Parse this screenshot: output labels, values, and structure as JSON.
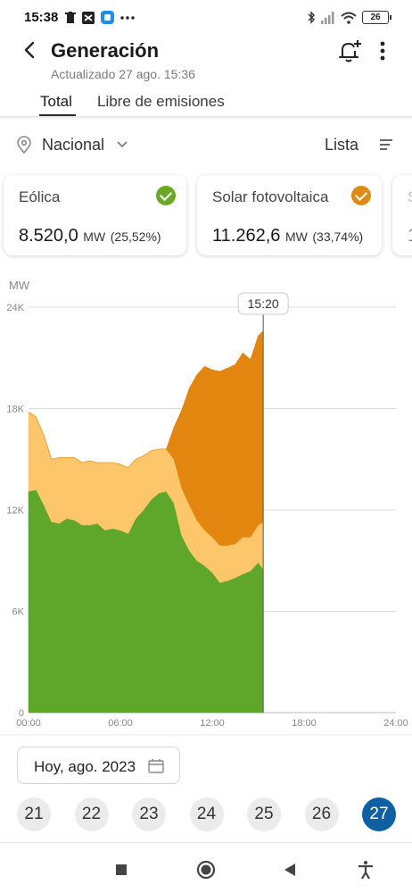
{
  "status_bar": {
    "time": "15:38",
    "left_icons": [
      "trash-icon",
      "transfer-icon",
      "app-icon",
      "more-dots-icon"
    ],
    "right_icons": [
      "bluetooth-icon",
      "signal-icon",
      "wifi-icon"
    ],
    "battery": "26"
  },
  "header": {
    "title": "Generación",
    "subtitle": "Actualizado 27 ago. 15:36",
    "tabs": [
      {
        "label": "Total",
        "active": true
      },
      {
        "label": "Libre de emisiones",
        "active": false
      }
    ]
  },
  "filters": {
    "location": "Nacional",
    "view": "Lista"
  },
  "cards": [
    {
      "name": "Eólica",
      "value": "8.520,0",
      "unit": "MW",
      "percent": "(25,52%)",
      "color": "#6aaa23"
    },
    {
      "name": "Solar fotovoltaica",
      "value": "11.262,6",
      "unit": "MW",
      "percent": "(33,74%)",
      "color": "#e08a16"
    },
    {
      "name": "S",
      "value": "1",
      "unit": "",
      "percent": "",
      "color": "#cccccc"
    }
  ],
  "chart_data": {
    "type": "area",
    "stacked": true,
    "ylabel": "MW",
    "ylim": [
      0,
      24000
    ],
    "y_ticks": [
      "0",
      "6K",
      "12K",
      "18K",
      "24K"
    ],
    "x_ticks": [
      "00:00",
      "06:00",
      "12:00",
      "18:00",
      "24:00"
    ],
    "cursor_label": "15:20",
    "grid": "horizontal",
    "x_hours": [
      0,
      0.5,
      1,
      1.5,
      2,
      2.5,
      3,
      3.5,
      4,
      4.5,
      5,
      5.5,
      6,
      6.5,
      7,
      7.5,
      8,
      8.5,
      9,
      9.5,
      10,
      10.5,
      11,
      11.5,
      12,
      12.5,
      13,
      13.5,
      14,
      14.5,
      15,
      15.33
    ],
    "series": [
      {
        "color": "#5fa72a",
        "values": [
          13100,
          13200,
          12300,
          11300,
          11200,
          11500,
          11400,
          11100,
          11100,
          11200,
          10800,
          10900,
          10800,
          10600,
          11500,
          12000,
          12600,
          13000,
          13100,
          12400,
          10500,
          9600,
          9000,
          8700,
          8300,
          7700,
          7800,
          8000,
          8200,
          8400,
          8900,
          8500
        ]
      },
      {
        "color": "#fdc66a",
        "values": [
          4700,
          4300,
          4100,
          3700,
          3900,
          3600,
          3700,
          3700,
          3800,
          3600,
          4000,
          3900,
          3900,
          3900,
          3500,
          3200,
          2900,
          2600,
          2500,
          2600,
          2800,
          2700,
          2400,
          2100,
          2100,
          2200,
          2100,
          2000,
          2200,
          2000,
          2200,
          2800
        ]
      },
      {
        "color": "#e2860f",
        "values": [
          0,
          0,
          0,
          0,
          0,
          0,
          0,
          0,
          0,
          0,
          0,
          0,
          0,
          0,
          0,
          0,
          0,
          0,
          0,
          1900,
          4600,
          6900,
          8600,
          9700,
          9900,
          10300,
          10500,
          10600,
          10900,
          10500,
          11200,
          11300
        ]
      }
    ]
  },
  "date_picker": {
    "label": "Hoy, ago. 2023"
  },
  "days": [
    {
      "label": "21",
      "active": false
    },
    {
      "label": "22",
      "active": false
    },
    {
      "label": "23",
      "active": false
    },
    {
      "label": "24",
      "active": false
    },
    {
      "label": "25",
      "active": false
    },
    {
      "label": "26",
      "active": false
    },
    {
      "label": "27",
      "active": true
    }
  ],
  "nav_bar": [
    "recents-square-icon",
    "home-circle-icon",
    "back-triangle-icon",
    "accessibility-icon"
  ]
}
